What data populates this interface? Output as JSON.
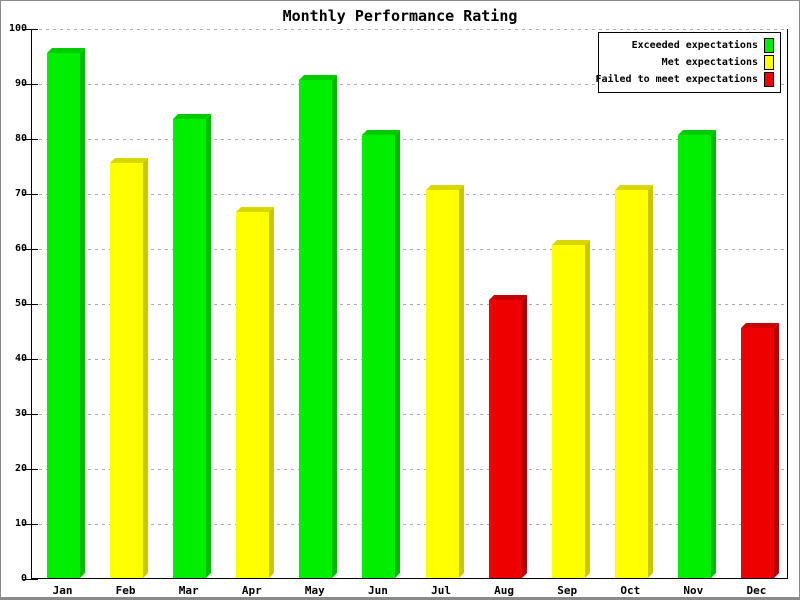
{
  "chart_data": {
    "type": "bar",
    "title": "Monthly Performance Rating",
    "categories": [
      "Jan",
      "Feb",
      "Mar",
      "Apr",
      "May",
      "Jun",
      "Jul",
      "Aug",
      "Sep",
      "Oct",
      "Nov",
      "Dec"
    ],
    "values": [
      95.5,
      75.5,
      83.5,
      66.5,
      90.5,
      80.5,
      70.5,
      50.5,
      60.5,
      70.5,
      80.5,
      45.5
    ],
    "bar_series": [
      "exceeded",
      "met",
      "exceeded",
      "met",
      "exceeded",
      "exceeded",
      "met",
      "failed",
      "met",
      "met",
      "exceeded",
      "failed"
    ],
    "xlabel": "",
    "ylabel": "",
    "ylim": [
      0,
      100
    ],
    "yticks": [
      0,
      10,
      20,
      30,
      40,
      50,
      60,
      70,
      80,
      90,
      100
    ],
    "grid": "horizontal-dashed",
    "gridline_color": "#aaaaaa",
    "axis_color": "#000000",
    "legend": {
      "position": "top-right",
      "entries": [
        {
          "series": "exceeded",
          "label": "Exceeded expectations",
          "color": "#00ee00"
        },
        {
          "series": "met",
          "label": "Met expectations",
          "color": "#ffff00"
        },
        {
          "series": "failed",
          "label": "Failed to meet expectations",
          "color": "#ee0000"
        }
      ]
    },
    "colors": {
      "exceeded": {
        "main": "#00ee00",
        "side": "#00bb00",
        "top": "#00cc00"
      },
      "met": {
        "main": "#ffff00",
        "side": "#c8c800",
        "top": "#d8d800"
      },
      "failed": {
        "main": "#ee0000",
        "side": "#b40000",
        "top": "#c80000"
      }
    }
  }
}
